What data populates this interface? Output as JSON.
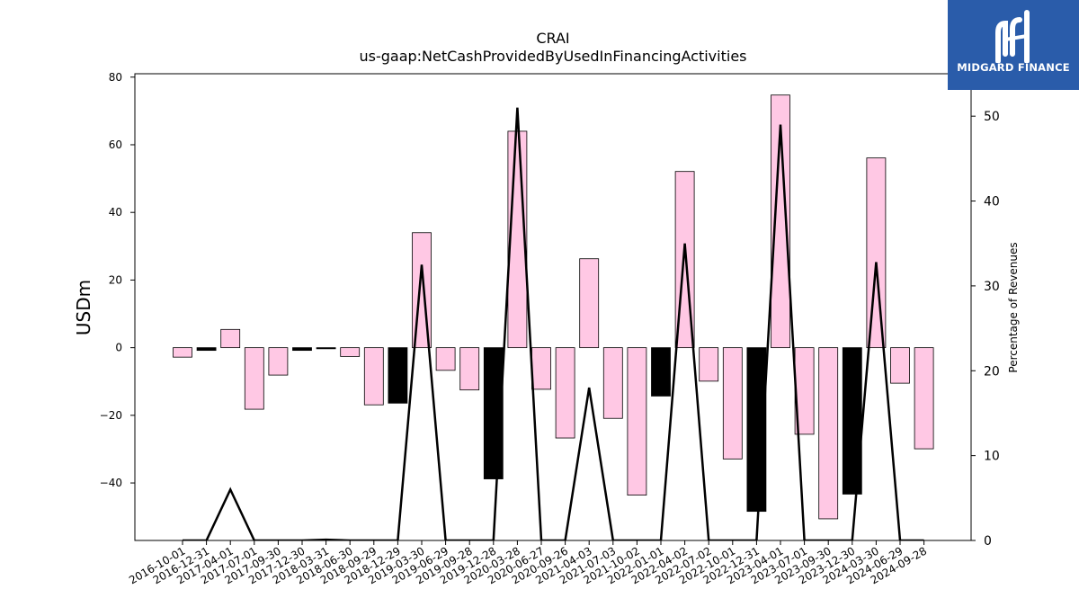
{
  "chart_data": {
    "type": "bar",
    "title": "CRAI",
    "subtitle": "us-gaap:NetCashProvidedByUsedInFinancingActivities",
    "ylabel": "USDm",
    "y2label": "Percentage of Revenues",
    "ylim": [
      -57,
      81
    ],
    "y2lim": [
      0,
      55
    ],
    "yticks": [
      -40,
      -20,
      0,
      20,
      40,
      60,
      80
    ],
    "y2ticks": [
      0,
      10,
      20,
      30,
      40,
      50
    ],
    "categories": [
      "2016-10-01",
      "2016-12-31",
      "2017-04-01",
      "2017-07-01",
      "2017-09-30",
      "2017-12-30",
      "2018-03-31",
      "2018-06-30",
      "2018-09-29",
      "2018-12-29",
      "2019-03-30",
      "2019-06-29",
      "2019-09-28",
      "2019-12-28",
      "2020-03-28",
      "2020-06-27",
      "2020-09-26",
      "2021-04-03",
      "2021-07-03",
      "2021-10-02",
      "2022-01-01",
      "2022-04-02",
      "2022-07-02",
      "2022-10-01",
      "2022-12-31",
      "2023-04-01",
      "2023-07-01",
      "2023-09-30",
      "2023-12-30",
      "2024-03-30",
      "2024-06-29",
      "2024-09-28"
    ],
    "series": [
      {
        "kind": "bar",
        "values": [
          -2.8,
          -0.8,
          5.4,
          -18.2,
          -8.1,
          -0.8,
          -0.2,
          -2.6,
          -16.9,
          -16.4,
          34.0,
          -6.7,
          -12.5,
          -38.8,
          64.0,
          -12.3,
          -26.7,
          26.3,
          -20.9,
          -43.6,
          -14.3,
          52.1,
          -9.9,
          -32.9,
          -48.4,
          74.7,
          -25.6,
          -50.6,
          -43.3,
          56.1,
          -10.5,
          -29.9
        ],
        "highlight": [
          false,
          true,
          false,
          false,
          false,
          true,
          true,
          false,
          false,
          true,
          false,
          false,
          false,
          true,
          false,
          false,
          false,
          false,
          false,
          false,
          true,
          false,
          false,
          false,
          true,
          false,
          false,
          false,
          true,
          false,
          false,
          false
        ],
        "colors": {
          "positive_fill": "#ffc8e4",
          "highlight_fill": "#000000",
          "edge": "#000000"
        }
      },
      {
        "kind": "line",
        "axis": "right",
        "values": [
          null,
          null,
          6.0,
          null,
          null,
          null,
          0.1,
          null,
          null,
          null,
          32.5,
          null,
          null,
          null,
          51.0,
          null,
          null,
          18.0,
          null,
          null,
          null,
          35.0,
          null,
          null,
          null,
          49.0,
          null,
          null,
          null,
          32.8,
          null,
          null
        ],
        "color": "#000000"
      }
    ]
  },
  "logo": {
    "text": "MIDGARD FINANCE",
    "bg_color": "#2a5caa"
  }
}
